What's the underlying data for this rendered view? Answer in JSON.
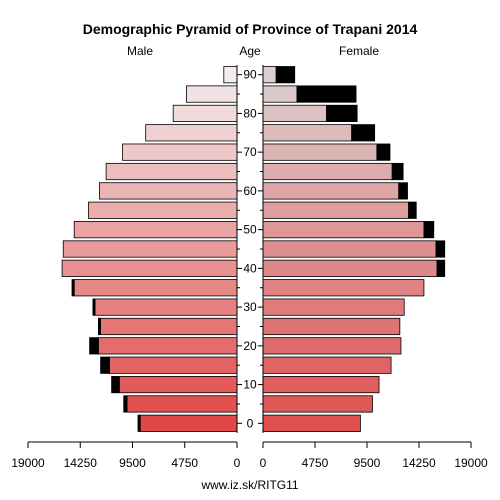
{
  "chart_data": {
    "type": "bar",
    "title": "Demographic Pyramid of Province of Trapani 2014",
    "left_label": "Male",
    "center_label": "Age",
    "right_label": "Female",
    "source": "www.iz.sk/RITG11",
    "age_groups": [
      "0-4",
      "5-9",
      "10-14",
      "15-19",
      "20-24",
      "25-29",
      "30-34",
      "35-39",
      "40-44",
      "45-49",
      "50-54",
      "55-59",
      "60-64",
      "65-69",
      "70-74",
      "75-79",
      "80-84",
      "85-89",
      "90+"
    ],
    "y_tick_labels": [
      "0",
      "10",
      "20",
      "30",
      "40",
      "50",
      "60",
      "70",
      "80",
      "90"
    ],
    "x_tick_labels_left": [
      "19000",
      "14250",
      "9500",
      "4750",
      "0"
    ],
    "x_tick_labels_right": [
      "0",
      "4750",
      "9500",
      "14250",
      "19000"
    ],
    "xlim": [
      0,
      19000
    ],
    "series": [
      {
        "name": "Male",
        "values": [
          8800,
          10000,
          10700,
          11600,
          12600,
          12400,
          12900,
          14800,
          15900,
          15800,
          14800,
          13500,
          12500,
          11900,
          10400,
          8300,
          5800,
          4600,
          1200
        ]
      },
      {
        "name": "Male excess",
        "values": [
          200,
          300,
          700,
          800,
          800,
          200,
          200,
          200,
          0,
          0,
          0,
          0,
          0,
          0,
          0,
          0,
          0,
          0,
          0
        ]
      },
      {
        "name": "Female",
        "values": [
          8900,
          10000,
          10600,
          11700,
          12600,
          12500,
          12900,
          14700,
          15900,
          15800,
          14700,
          13300,
          12400,
          11800,
          10400,
          8100,
          5800,
          3100,
          1200
        ]
      },
      {
        "name": "Female excess",
        "values": [
          0,
          0,
          0,
          0,
          0,
          0,
          0,
          0,
          700,
          800,
          900,
          700,
          800,
          1000,
          1200,
          2100,
          2800,
          5400,
          1700
        ]
      }
    ],
    "colors": {
      "male_young": "#e04848",
      "male_old": "#f2ecec",
      "female_young": "#e05050",
      "female_old": "#dcd0d0",
      "excess": "#000000"
    }
  }
}
